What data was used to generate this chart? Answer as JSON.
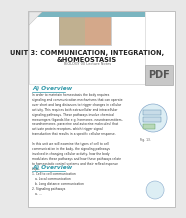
{
  "bg_color": "#e8e8e8",
  "page_bg": "#ffffff",
  "slide_bg": "#ffffff",
  "teal_bar": "#7ab5c0",
  "title_text": "UNIT 3: COMMUNICATION, INTEGRATION,\n&HOMEOSTASIS",
  "subtitle_text": "BIOLOGY 00 Lecture Notes",
  "section1_title": "A) Overview",
  "section_color": "#3399aa",
  "body1_text": "In order to maintain homeostasis the body requires\nsignaling and communication mechanisms that can operate\nover short and long distances to trigger changes in cellular\nactivity. This requires both extracellular and intracellular\nsignaling pathways. These pathways involve chemical\nmessengers (ligands like e.g. hormones, neurotransmitters,\nneurohormones, paracrine and autocrine molecules) that\nactivate protein receptors, which trigger signal\ntransduction that results in a specific cellular response.\n\nIn this unit we will examine the types of cell to cell\ncommunication in the body, the signaling pathways\ninvolved in changing cellular activity, how the body\nmodulates these pathways and how these pathways relate\nto homeostatic control systems and their reflex/response\nloops.",
  "fig_label": "Fig. 13.",
  "section2_title": "A) Overview",
  "body2_text": "1. Cell to cell communication\n   a. Local communication\n   b. Long distance communication\n2. Signaling pathways\n   a. ...",
  "pdf_text": "PDF",
  "pdf_bg": "#c8c8c8",
  "pdf_color": "#555555",
  "skull_color": "#c0b090",
  "anatomy_color": "#d4a88a",
  "img_bg": "#c8b898",
  "img_border": "#aaaaaa",
  "title_fontsize": 4.8,
  "subtitle_fontsize": 2.5,
  "section_fontsize": 4.2,
  "body_fontsize": 2.2,
  "body_linespacing": 1.3
}
